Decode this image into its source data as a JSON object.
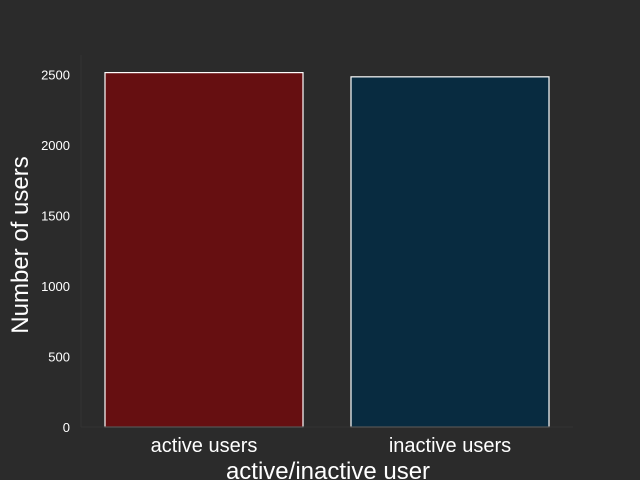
{
  "chart_data": {
    "type": "bar",
    "title": "",
    "xlabel": "active/inactive user",
    "ylabel": "Number of users",
    "categories": [
      "active users",
      "inactive users"
    ],
    "values": [
      2515,
      2485
    ],
    "ylim": [
      0,
      2640
    ],
    "yticks": [
      0,
      500,
      1000,
      1500,
      2000,
      2500
    ],
    "grid": false,
    "legend": "none",
    "colors": {
      "background": "#2b2b2b",
      "bars": [
        "#660f11",
        "#082b40"
      ],
      "bar_edge": "#ffffff",
      "axis": "#333333",
      "text": "#ffffff"
    }
  }
}
